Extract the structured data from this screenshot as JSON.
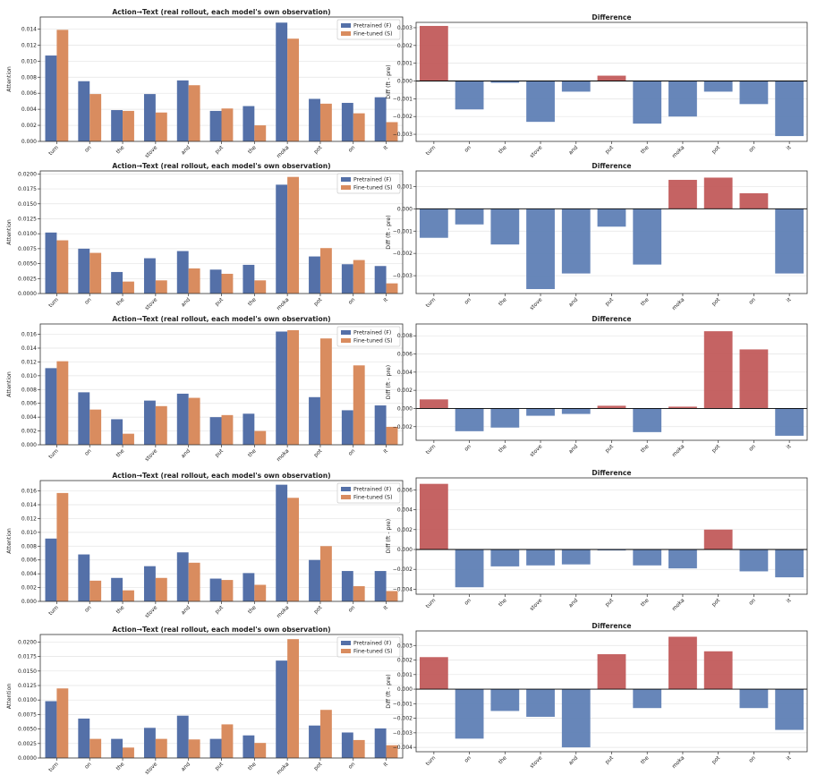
{
  "colors": {
    "pretrained": "#5470a8",
    "finetuned": "#d98c5f",
    "positive": "#c25b5b",
    "negative": "#5f7fb5"
  },
  "chart_data": [
    {
      "type": "bar",
      "title": "Action→Text (real rollout, each model's own observation)",
      "xlabel": "",
      "ylabel": "Attention",
      "categories": [
        "turn",
        "on",
        "the",
        "stove",
        "and",
        "put",
        "the",
        "moka",
        "pot",
        "on",
        "it"
      ],
      "ylim": [
        0,
        0.0155
      ],
      "yticks": [
        "0.000",
        "0.002",
        "0.004",
        "0.006",
        "0.008",
        "0.010",
        "0.012",
        "0.014"
      ],
      "legend": "top-right",
      "grid": true,
      "series": [
        {
          "name": "Pretrained (F)",
          "values": [
            0.0107,
            0.0075,
            0.0039,
            0.0059,
            0.0076,
            0.0038,
            0.0044,
            0.0148,
            0.0053,
            0.0048,
            0.0055
          ]
        },
        {
          "name": "Fine-tuned (S)",
          "values": [
            0.0139,
            0.0059,
            0.0038,
            0.0036,
            0.007,
            0.0041,
            0.002,
            0.0128,
            0.0047,
            0.0035,
            0.0024
          ]
        }
      ]
    },
    {
      "type": "bar",
      "title": "Difference",
      "xlabel": "",
      "ylabel": "Diff (ft - pre)",
      "categories": [
        "turn",
        "on",
        "the",
        "stove",
        "and",
        "put",
        "the",
        "moka",
        "pot",
        "on",
        "it"
      ],
      "ylim": [
        -0.0034,
        0.0033
      ],
      "yticks": [
        "−0.003",
        "−0.002",
        "−0.001",
        "0.000",
        "0.001",
        "0.002",
        "0.003"
      ],
      "grid": true,
      "values": [
        0.0031,
        -0.0016,
        -0.0001,
        -0.0023,
        -0.0006,
        0.0003,
        -0.0024,
        -0.002,
        -0.0006,
        -0.0013,
        -0.0031
      ]
    },
    {
      "type": "bar",
      "title": "Action→Text (real rollout, each model's own observation)",
      "xlabel": "",
      "ylabel": "Attention",
      "categories": [
        "turn",
        "on",
        "the",
        "stove",
        "and",
        "put",
        "the",
        "moka",
        "pot",
        "on",
        "it"
      ],
      "ylim": [
        0,
        0.0205
      ],
      "yticks": [
        "0.0000",
        "0.0025",
        "0.0050",
        "0.0075",
        "0.0100",
        "0.0125",
        "0.0150",
        "0.0175",
        "0.0200"
      ],
      "legend": "top-right",
      "grid": true,
      "series": [
        {
          "name": "Pretrained (F)",
          "values": [
            0.0102,
            0.0075,
            0.0036,
            0.0059,
            0.0071,
            0.004,
            0.0048,
            0.0182,
            0.0062,
            0.0049,
            0.0046
          ]
        },
        {
          "name": "Fine-tuned (S)",
          "values": [
            0.0089,
            0.0068,
            0.002,
            0.0022,
            0.0042,
            0.0033,
            0.0022,
            0.0195,
            0.0076,
            0.0056,
            0.0017
          ]
        }
      ]
    },
    {
      "type": "bar",
      "title": "Difference",
      "xlabel": "",
      "ylabel": "Diff (ft - pre)",
      "categories": [
        "turn",
        "on",
        "the",
        "stove",
        "and",
        "put",
        "the",
        "moka",
        "pot",
        "on",
        "it"
      ],
      "ylim": [
        -0.0038,
        0.0017
      ],
      "yticks": [
        "−0.003",
        "−0.002",
        "−0.001",
        "0.000",
        "0.001"
      ],
      "grid": true,
      "values": [
        -0.0013,
        -0.0007,
        -0.0016,
        -0.0036,
        -0.0029,
        -0.0008,
        -0.0025,
        0.0013,
        0.0014,
        0.0007,
        -0.0029
      ]
    },
    {
      "type": "bar",
      "title": "Action→Text (real rollout, each model's own observation)",
      "xlabel": "",
      "ylabel": "Attention",
      "categories": [
        "turn",
        "on",
        "the",
        "stove",
        "and",
        "put",
        "the",
        "moka",
        "pot",
        "on",
        "it"
      ],
      "ylim": [
        0,
        0.0175
      ],
      "yticks": [
        "0.000",
        "0.002",
        "0.004",
        "0.006",
        "0.008",
        "0.010",
        "0.012",
        "0.014",
        "0.016"
      ],
      "legend": "top-right",
      "grid": true,
      "series": [
        {
          "name": "Pretrained (F)",
          "values": [
            0.0111,
            0.0076,
            0.0037,
            0.0064,
            0.0074,
            0.004,
            0.0045,
            0.0164,
            0.0069,
            0.005,
            0.0057
          ]
        },
        {
          "name": "Fine-tuned (S)",
          "values": [
            0.0121,
            0.0051,
            0.0016,
            0.0056,
            0.0068,
            0.0043,
            0.002,
            0.0166,
            0.0154,
            0.0115,
            0.0026
          ]
        }
      ]
    },
    {
      "type": "bar",
      "title": "Difference",
      "xlabel": "",
      "ylabel": "Diff (ft - pre)",
      "categories": [
        "turn",
        "on",
        "the",
        "stove",
        "and",
        "put",
        "the",
        "moka",
        "pot",
        "on",
        "it"
      ],
      "ylim": [
        -0.0035,
        0.0093
      ],
      "yticks": [
        "−0.002",
        "0.000",
        "0.002",
        "0.004",
        "0.006",
        "0.008"
      ],
      "grid": true,
      "values": [
        0.001,
        -0.0025,
        -0.0021,
        -0.0008,
        -0.0006,
        0.0003,
        -0.0026,
        0.0002,
        0.0085,
        0.0065,
        -0.003
      ]
    },
    {
      "type": "bar",
      "title": "Action→Text (real rollout, each model's own observation)",
      "xlabel": "",
      "ylabel": "Attention",
      "categories": [
        "turn",
        "on",
        "the",
        "stove",
        "and",
        "put",
        "the",
        "moka",
        "pot",
        "on",
        "it"
      ],
      "ylim": [
        0,
        0.0175
      ],
      "yticks": [
        "0.000",
        "0.002",
        "0.004",
        "0.006",
        "0.008",
        "0.010",
        "0.012",
        "0.014",
        "0.016"
      ],
      "legend": "top-right",
      "grid": true,
      "series": [
        {
          "name": "Pretrained (F)",
          "values": [
            0.0091,
            0.0068,
            0.0034,
            0.0051,
            0.0071,
            0.0033,
            0.0041,
            0.0169,
            0.006,
            0.0044,
            0.0044
          ]
        },
        {
          "name": "Fine-tuned (S)",
          "values": [
            0.0157,
            0.003,
            0.0016,
            0.0034,
            0.0056,
            0.0031,
            0.0024,
            0.015,
            0.008,
            0.0022,
            0.0015
          ]
        }
      ]
    },
    {
      "type": "bar",
      "title": "Difference",
      "xlabel": "",
      "ylabel": "Diff (ft - pre)",
      "categories": [
        "turn",
        "on",
        "the",
        "stove",
        "and",
        "put",
        "the",
        "moka",
        "pot",
        "on",
        "it"
      ],
      "ylim": [
        -0.0045,
        0.0072
      ],
      "yticks": [
        "−0.004",
        "−0.002",
        "0.000",
        "0.002",
        "0.004",
        "0.006"
      ],
      "grid": true,
      "values": [
        0.0066,
        -0.0038,
        -0.0017,
        -0.0016,
        -0.0015,
        -0.0001,
        -0.0016,
        -0.0019,
        0.002,
        -0.0022,
        -0.0028
      ]
    },
    {
      "type": "bar",
      "title": "Action→Text (real rollout, each model's own observation)",
      "xlabel": "",
      "ylabel": "Attention",
      "categories": [
        "turn",
        "on",
        "the",
        "stove",
        "and",
        "put",
        "the",
        "moka",
        "pot",
        "on",
        "it"
      ],
      "ylim": [
        0,
        0.0213
      ],
      "yticks": [
        "0.0000",
        "0.0025",
        "0.0050",
        "0.0075",
        "0.0100",
        "0.0125",
        "0.0150",
        "0.0175",
        "0.0200"
      ],
      "legend": "top-right",
      "grid": true,
      "series": [
        {
          "name": "Pretrained (F)",
          "values": [
            0.0098,
            0.0068,
            0.0033,
            0.0052,
            0.0073,
            0.0033,
            0.0039,
            0.0168,
            0.0056,
            0.0044,
            0.0051
          ]
        },
        {
          "name": "Fine-tuned (S)",
          "values": [
            0.012,
            0.0033,
            0.0018,
            0.0033,
            0.0032,
            0.0058,
            0.0026,
            0.0205,
            0.0083,
            0.0031,
            0.0022
          ]
        }
      ]
    },
    {
      "type": "bar",
      "title": "Difference",
      "xlabel": "",
      "ylabel": "Diff (ft - pre)",
      "categories": [
        "turn",
        "on",
        "the",
        "stove",
        "and",
        "put",
        "the",
        "moka",
        "pot",
        "on",
        "it"
      ],
      "ylim": [
        -0.0043,
        0.004
      ],
      "yticks": [
        "−0.004",
        "−0.003",
        "−0.002",
        "−0.001",
        "0.000",
        "0.001",
        "0.002",
        "0.003"
      ],
      "grid": true,
      "values": [
        0.0022,
        -0.0034,
        -0.0015,
        -0.0019,
        -0.004,
        0.0024,
        -0.0013,
        0.0036,
        0.0026,
        -0.0013,
        -0.0028
      ]
    }
  ]
}
